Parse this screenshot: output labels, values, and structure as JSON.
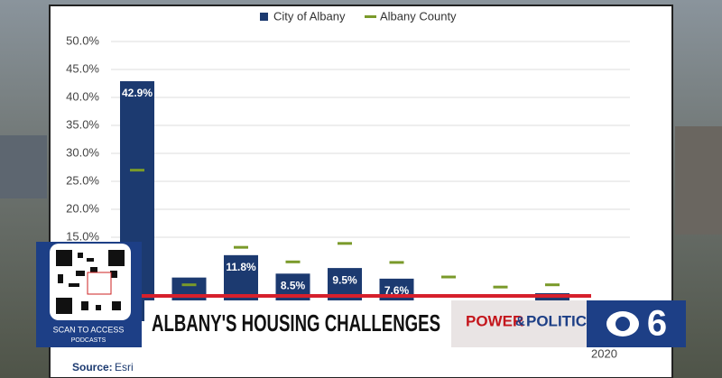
{
  "chart_data": {
    "type": "bar",
    "categories": [
      null,
      null,
      null,
      null,
      null,
      null,
      null,
      null,
      null,
      "2020"
    ],
    "series": [
      {
        "name": "City of Albany",
        "color": "#1c3a70",
        "kind": "bar",
        "values": [
          42.9,
          7.8,
          11.8,
          8.5,
          9.5,
          7.6,
          null,
          null,
          5.0,
          null
        ],
        "value_labels": [
          "42.9%",
          null,
          "11.8%",
          "8.5%",
          "9.5%",
          "7.6%",
          null,
          null,
          null,
          null
        ]
      },
      {
        "name": "Albany County",
        "color": "#7a9a2a",
        "kind": "marker",
        "values": [
          27.0,
          6.5,
          13.2,
          10.6,
          13.9,
          10.5,
          7.9,
          6.1,
          6.5,
          null
        ]
      }
    ],
    "ylim": [
      0,
      50
    ],
    "yticks": [
      {
        "value": 15,
        "label": "15.0%"
      },
      {
        "value": 20,
        "label": "20.0%"
      },
      {
        "value": 25,
        "label": "25.0%"
      },
      {
        "value": 30,
        "label": "30.0%"
      },
      {
        "value": 35,
        "label": "35.0%"
      },
      {
        "value": 40,
        "label": "40.0%"
      },
      {
        "value": 45,
        "label": "45.0%"
      },
      {
        "value": 50,
        "label": "50.0%"
      }
    ],
    "grid": true,
    "source_label": "Source:",
    "source": "Esri"
  },
  "overlay": {
    "qr_caption": "SCAN TO ACCESS",
    "qr_sub": "PODCASTS",
    "headline": "ALBANY'S HOUSING CHALLENGES",
    "show_left": "POWER",
    "show_amp": "&",
    "show_right": "POLITICS",
    "station": "6"
  }
}
